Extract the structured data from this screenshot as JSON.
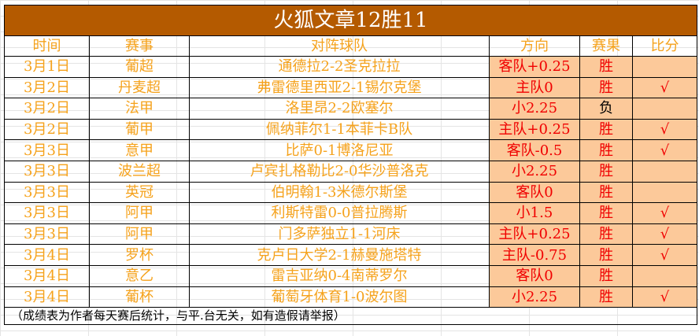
{
  "title": "火狐文章12胜11",
  "headers": [
    "时间",
    "赛事",
    "对阵球队",
    "方向",
    "赛果",
    "比分"
  ],
  "rows": [
    {
      "date": "3月1日",
      "league": "葡超",
      "match": "通德拉2-2圣克拉拉",
      "direction": "客队+0.25",
      "result": "胜",
      "score": ""
    },
    {
      "date": "3月2日",
      "league": "丹麦超",
      "match": "弗雷德里西亚2-1锡尔克堡",
      "direction": "主队0",
      "result": "胜",
      "score": "√"
    },
    {
      "date": "3月2日",
      "league": "法甲",
      "match": "洛里昂2-2欧塞尔",
      "direction": "小2.25",
      "result": "负",
      "score": ""
    },
    {
      "date": "3月2日",
      "league": "葡甲",
      "match": "佩纳菲尔1-1本菲卡B队",
      "direction": "主队+0.25",
      "result": "胜",
      "score": "√"
    },
    {
      "date": "3月3日",
      "league": "意甲",
      "match": "比萨0-1博洛尼亚",
      "direction": "客队-0.5",
      "result": "胜",
      "score": "√"
    },
    {
      "date": "3月3日",
      "league": "波兰超",
      "match": "卢宾扎格勒比2-0华沙普洛克",
      "direction": "小2.25",
      "result": "胜",
      "score": ""
    },
    {
      "date": "3月3日",
      "league": "英冠",
      "match": "伯明翰1-3米德尔斯堡",
      "direction": "客队0",
      "result": "胜",
      "score": ""
    },
    {
      "date": "3月3日",
      "league": "阿甲",
      "match": "利斯特雷0-0普拉腾斯",
      "direction": "小1.5",
      "result": "胜",
      "score": "√"
    },
    {
      "date": "3月3日",
      "league": "阿甲",
      "match": "门多萨独立1-1河床",
      "direction": "主队+0.25",
      "result": "胜",
      "score": "√"
    },
    {
      "date": "3月4日",
      "league": "罗杯",
      "match": "克卢日大学2-1赫曼施塔特",
      "direction": "主队-0.75",
      "result": "胜",
      "score": "√"
    },
    {
      "date": "3月4日",
      "league": "意乙",
      "match": "雷吉亚纳0-4南蒂罗尔",
      "direction": "客队0",
      "result": "胜",
      "score": ""
    },
    {
      "date": "3月4日",
      "league": "葡杯",
      "match": "葡萄牙体育1-0波尔图",
      "direction": "小2.25",
      "result": "胜",
      "score": "√"
    }
  ],
  "footer": "（成绩表为作者每天赛后统计，与平.台无关，如有造假请举报）",
  "colors": {
    "title_bg": "#b45a00",
    "text": "#f5a21c",
    "highlight_bg": "#fcc99a",
    "highlight_text": "#f00000"
  }
}
